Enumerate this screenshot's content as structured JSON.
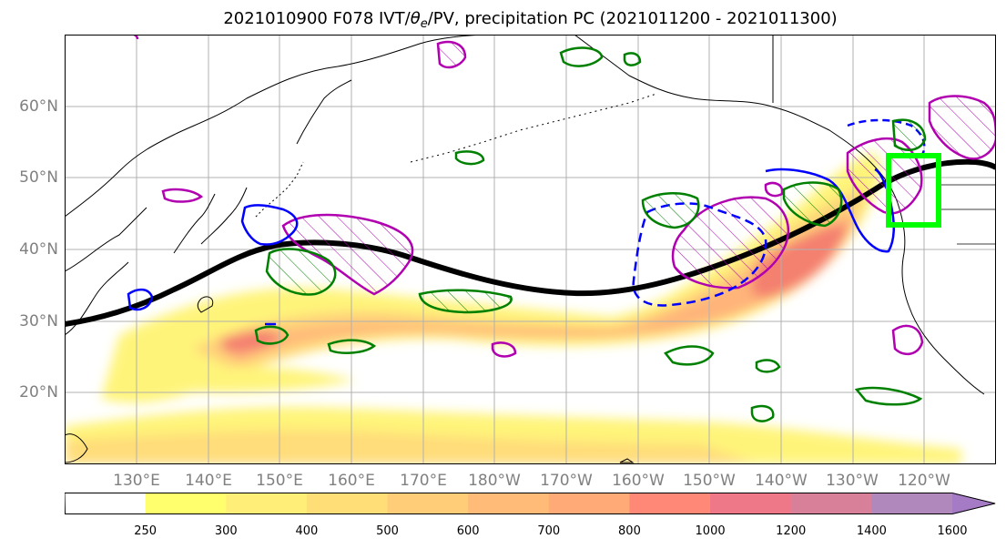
{
  "title": {
    "prefix": "2021010900 F078 IVT/",
    "theta": "θ",
    "theta_sub": "e",
    "suffix": "/PV, precipitation PC (2021011200 - 2021011300)"
  },
  "map": {
    "projection": "PlateCarree",
    "lon_range": [
      120,
      250
    ],
    "lat_range": [
      10,
      70
    ],
    "lat_labels": [
      "20°N",
      "30°N",
      "40°N",
      "50°N",
      "60°N"
    ],
    "lon_labels": [
      "130°E",
      "140°E",
      "150°E",
      "160°E",
      "170°E",
      "180°W",
      "170°W",
      "160°W",
      "150°W",
      "140°W",
      "130°W",
      "120°W"
    ],
    "grid": true,
    "colors": {
      "ivt_fill": "#ffff6e",
      "theta_e_contour": "#000000",
      "pv_negative": "#0000ff",
      "pv_positive": "#b000b0",
      "precip_contour": "#008000",
      "target_box": "#00ff00"
    }
  },
  "colorbar": {
    "levels": [
      "250",
      "300",
      "400",
      "500",
      "600",
      "700",
      "800",
      "1000",
      "1200",
      "1400",
      "1600"
    ],
    "colors": [
      "#ffffff",
      "#ffff6e",
      "#ffee77",
      "#ffdd77",
      "#ffcc77",
      "#ffbb77",
      "#ffaa77",
      "#ff8877",
      "#ee7788",
      "#d88099",
      "#b088bb",
      "#a67bc5"
    ]
  }
}
